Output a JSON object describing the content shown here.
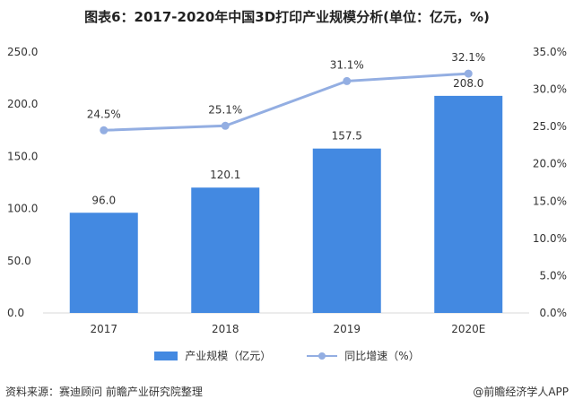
{
  "header": {
    "title": "图表6：2017-2020年中国3D打印产业规模分析(单位：亿元，%)"
  },
  "footer": {
    "source": "资料来源：赛迪顾问 前瞻产业研究院整理",
    "credit": "@前瞻经济学人APP"
  },
  "chart_data": {
    "type": "bar",
    "categories": [
      "2017",
      "2018",
      "2019",
      "2020E"
    ],
    "series": [
      {
        "name": "产业规模（亿元）",
        "type": "bar",
        "axis": "left",
        "color": "#4389e1",
        "values": [
          96.0,
          120.1,
          157.5,
          208.0
        ],
        "labels": [
          "96.0",
          "120.1",
          "157.5",
          "208.0"
        ]
      },
      {
        "name": "同比增速（%）",
        "type": "line",
        "axis": "right",
        "color": "#93aee2",
        "values": [
          24.5,
          25.1,
          31.1,
          32.1
        ],
        "labels": [
          "24.5%",
          "25.1%",
          "31.1%",
          "32.1%"
        ]
      }
    ],
    "y_left": {
      "ylim": [
        0,
        250
      ],
      "ticks": [
        "0.0",
        "50.0",
        "100.0",
        "150.0",
        "200.0",
        "250.0"
      ]
    },
    "y_right": {
      "ylim": [
        0,
        35
      ],
      "ticks": [
        "0.0%",
        "5.0%",
        "10.0%",
        "15.0%",
        "20.0%",
        "25.0%",
        "30.0%",
        "35.0%"
      ]
    },
    "grid": false,
    "legend_position": "bottom"
  }
}
